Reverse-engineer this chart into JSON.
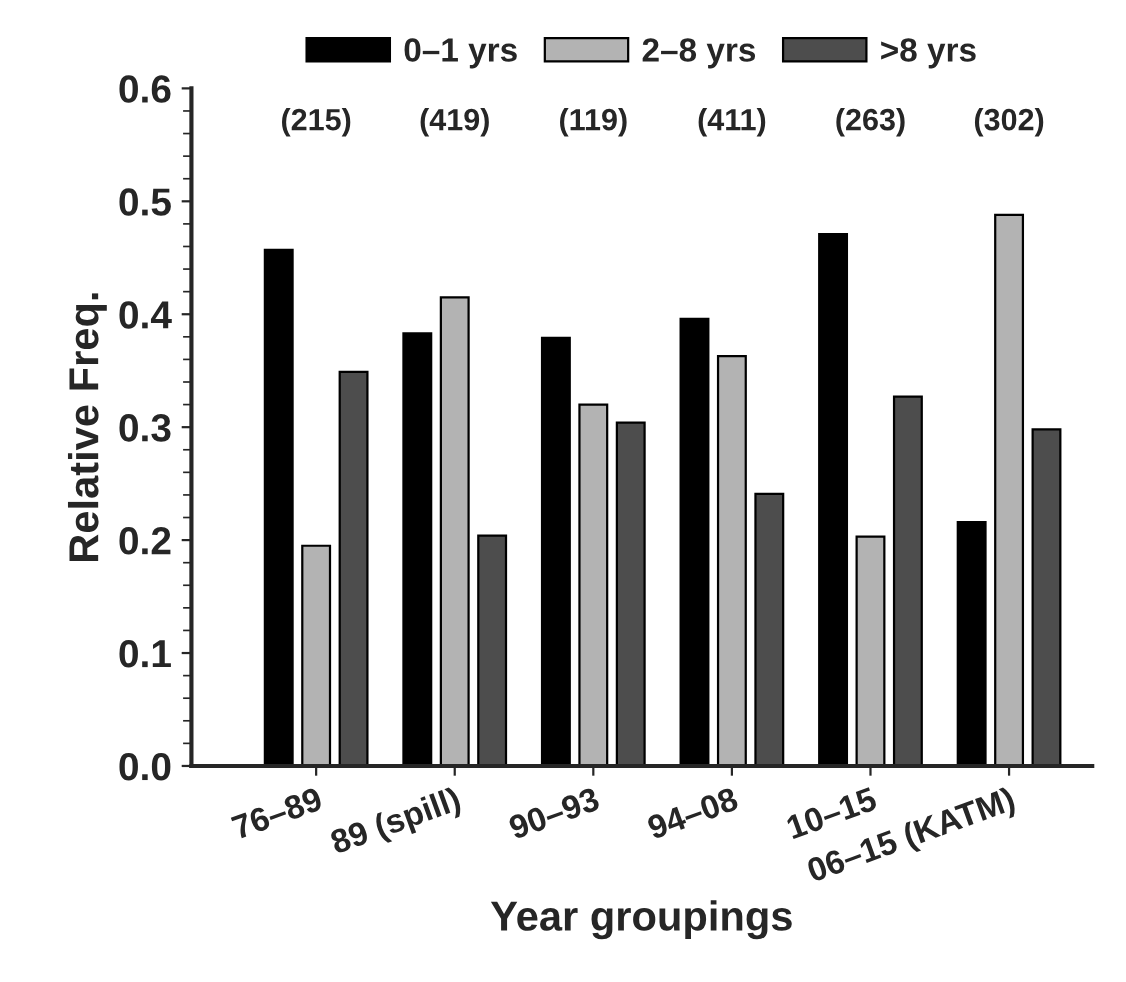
{
  "chart_data": {
    "type": "bar",
    "xlabel": "Year groupings",
    "ylabel": "Relative Freq.",
    "categories": [
      "76–89",
      "89 (spill)",
      "90–93",
      "94–08",
      "10–15",
      "06–15 (KATM)"
    ],
    "series": [
      {
        "name": "0–1 yrs",
        "color": "#000000",
        "values": [
          0.457,
          0.383,
          0.379,
          0.396,
          0.471,
          0.216
        ]
      },
      {
        "name": "2–8 yrs",
        "color": "#b3b3b3",
        "values": [
          0.195,
          0.415,
          0.32,
          0.363,
          0.203,
          0.488
        ]
      },
      {
        "name": ">8 yrs",
        "color": "#4d4d4d",
        "values": [
          0.349,
          0.204,
          0.304,
          0.241,
          0.327,
          0.298
        ]
      }
    ],
    "annotations": [
      "(215)",
      "(419)",
      "(119)",
      "(411)",
      "(263)",
      "(302)"
    ],
    "ylim": [
      0,
      0.6
    ],
    "yticks": [
      {
        "value": 0,
        "label": "0.0"
      },
      0.1,
      0.2,
      0.3,
      0.4,
      0.5,
      0.6
    ],
    "grid": false,
    "legend": "top"
  }
}
